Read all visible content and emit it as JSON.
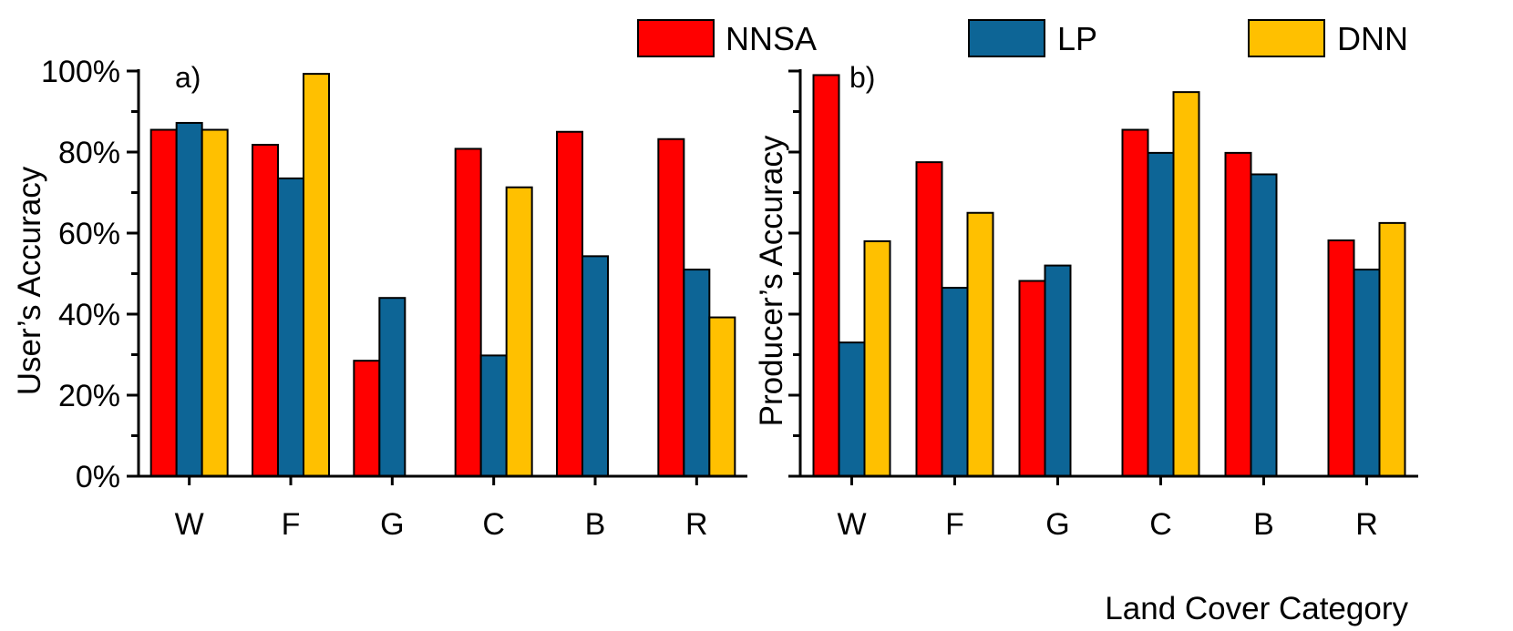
{
  "legend": {
    "position": "top-right",
    "entries": [
      {
        "label": "NNSA",
        "color": "#ff0000"
      },
      {
        "label": "LP",
        "color": "#0d6596"
      },
      {
        "label": "DNN",
        "color": "#ffc000"
      }
    ]
  },
  "xlabel": "Land Cover Category",
  "chart_data": [
    {
      "type": "bar",
      "panel_label": "a)",
      "title": "",
      "xlabel": "",
      "ylabel": "User’s Accuracy",
      "ylim": [
        0,
        100
      ],
      "yticks": [
        0,
        20,
        40,
        60,
        80,
        100
      ],
      "ytick_labels": [
        "0%",
        "20%",
        "40%",
        "60%",
        "80%",
        "100%"
      ],
      "categories": [
        "W",
        "F",
        "G",
        "C",
        "B",
        "R"
      ],
      "series": [
        {
          "name": "NNSA",
          "color": "#ff0000",
          "values": [
            85.5,
            81.8,
            28.5,
            80.8,
            85.0,
            83.2
          ]
        },
        {
          "name": "LP",
          "color": "#0d6596",
          "values": [
            87.2,
            73.5,
            44.0,
            29.8,
            54.3,
            51.0
          ]
        },
        {
          "name": "DNN",
          "color": "#ffc000",
          "values": [
            85.5,
            99.3,
            null,
            71.3,
            null,
            39.2
          ]
        }
      ]
    },
    {
      "type": "bar",
      "panel_label": "b)",
      "title": "",
      "xlabel": "Land Cover Category",
      "ylabel": "Producer’s Accuracy",
      "ylim": [
        0,
        100
      ],
      "yticks": [
        0,
        20,
        40,
        60,
        80,
        100
      ],
      "ytick_labels": [],
      "categories": [
        "W",
        "F",
        "G",
        "C",
        "B",
        "R"
      ],
      "series": [
        {
          "name": "NNSA",
          "color": "#ff0000",
          "values": [
            99.0,
            77.5,
            48.2,
            85.5,
            79.8,
            58.2
          ]
        },
        {
          "name": "LP",
          "color": "#0d6596",
          "values": [
            33.0,
            46.5,
            52.0,
            79.8,
            74.5,
            51.0
          ]
        },
        {
          "name": "DNN",
          "color": "#ffc000",
          "values": [
            58.0,
            65.0,
            null,
            94.8,
            null,
            62.5
          ]
        }
      ]
    }
  ]
}
